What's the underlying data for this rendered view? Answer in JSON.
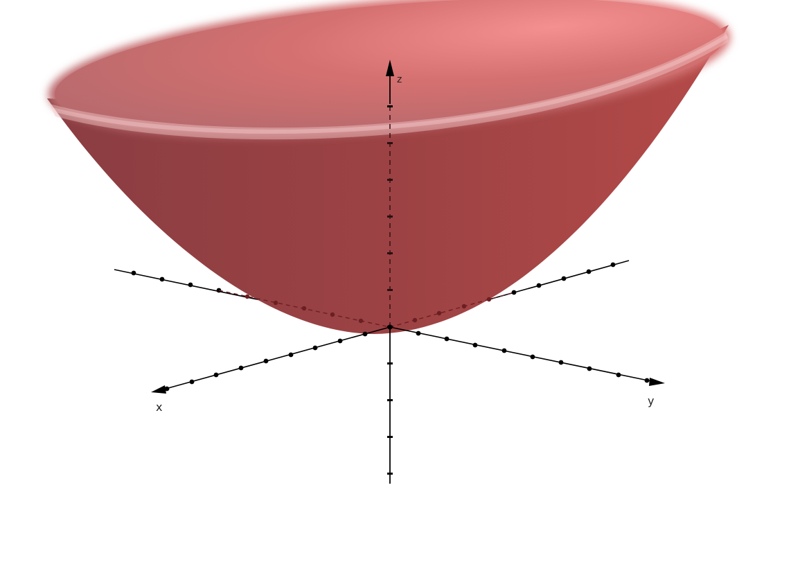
{
  "view": {
    "projection": "3D perspective",
    "surface": "paraboloid",
    "surface_color": "#a94446",
    "surface_highlight": "#f08a8a",
    "axis_color": "#000000",
    "hidden_axis_color": "#6b1f22"
  },
  "axes": {
    "x": {
      "label": "x"
    },
    "y": {
      "label": "y"
    },
    "z": {
      "label": "z"
    }
  }
}
